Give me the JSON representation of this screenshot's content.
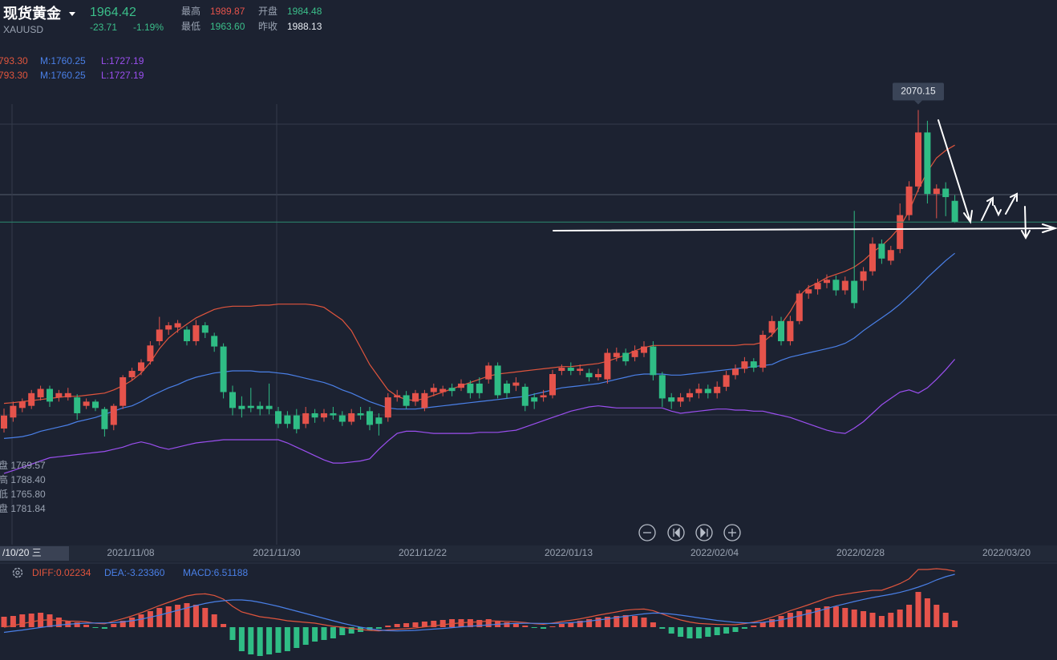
{
  "header": {
    "name": "现货黄金",
    "symbol": "XAUUSD",
    "price": "1964.42",
    "change": "-23.71",
    "change_pct": "-1.19%",
    "high_label": "最高",
    "high": "1989.87",
    "open_label": "开盘",
    "open": "1984.48",
    "low_label": "最低",
    "low": "1963.60",
    "prev_label": "昨收",
    "prev": "1988.13"
  },
  "band_legend": [
    {
      "upper": "793.30",
      "mid": "M:1760.25",
      "lower": "L:1727.19"
    },
    {
      "upper": "793.30",
      "mid": "M:1760.25",
      "lower": "L:1727.19"
    }
  ],
  "crosshair_info": [
    "盘 1769.57",
    "高 1788.40",
    "低 1765.80",
    "盘 1781.84"
  ],
  "crosshair_date": "/10/20 三",
  "chart_data": [
    {
      "type": "candlestick",
      "x_labels": [
        "2021/11/08",
        "2021/11/30",
        "2021/12/22",
        "2022/01/13",
        "2022/02/04",
        "2022/02/28",
        "2022/03/20"
      ],
      "up_color": "#e5534b",
      "down_color": "#2fbd85",
      "open": [
        1769.57,
        1780,
        1789,
        1791,
        1799,
        1807,
        1799,
        1799,
        1799,
        1791,
        1795,
        1788,
        1773,
        1791,
        1818,
        1824,
        1833,
        1852,
        1863,
        1865,
        1863,
        1852,
        1867,
        1857,
        1847,
        1804,
        1791,
        1791,
        1791,
        1791,
        1786,
        1782,
        1782,
        1774,
        1784,
        1780,
        1784,
        1782,
        1776,
        1784,
        1786,
        1780,
        1780,
        1799,
        1801,
        1795,
        1789,
        1804,
        1804,
        1808,
        1808,
        1812,
        1812,
        1816,
        1829,
        1812,
        1810,
        1809,
        1799,
        1799,
        1801,
        1824,
        1827,
        1824,
        1822,
        1818,
        1816,
        1837,
        1841,
        1837,
        1841,
        1847,
        1820,
        1799,
        1795,
        1799,
        1803,
        1807,
        1803,
        1809,
        1820,
        1826,
        1833,
        1827,
        1860,
        1871,
        1852,
        1871,
        1897,
        1901,
        1907,
        1910,
        1900,
        1909,
        1909,
        1918,
        1944,
        1928,
        1939,
        1971,
        1998,
        2049,
        1991,
        1996,
        1984.48
      ],
      "high": [
        1788.4,
        1795,
        1798,
        1806,
        1810,
        1810,
        1806,
        1808,
        1802,
        1798,
        1797,
        1790,
        1793,
        1820,
        1827,
        1835,
        1852,
        1875,
        1870,
        1872,
        1866,
        1872,
        1870,
        1860,
        1850,
        1810,
        1800,
        1808,
        1795,
        1812,
        1790,
        1786,
        1788,
        1790,
        1788,
        1788,
        1790,
        1786,
        1788,
        1790,
        1790,
        1784,
        1803,
        1806,
        1805,
        1806,
        1806,
        1812,
        1810,
        1812,
        1816,
        1815,
        1818,
        1832,
        1832,
        1815,
        1818,
        1812,
        1803,
        1806,
        1825,
        1830,
        1832,
        1830,
        1826,
        1826,
        1845,
        1846,
        1845,
        1848,
        1852,
        1852,
        1823,
        1803,
        1803,
        1807,
        1812,
        1811,
        1814,
        1824,
        1830,
        1837,
        1836,
        1862,
        1876,
        1875,
        1876,
        1900,
        1905,
        1911,
        1915,
        1914,
        1913,
        1975,
        1922,
        1950,
        1948,
        1942,
        1982,
        2003,
        2070.15,
        2060,
        2000,
        2002,
        1989.87
      ],
      "low": [
        1765.8,
        1776,
        1785,
        1788,
        1796,
        1790,
        1795,
        1796,
        1778,
        1788,
        1786,
        1762,
        1768,
        1788,
        1815,
        1820,
        1830,
        1848,
        1858,
        1860,
        1848,
        1848,
        1855,
        1842,
        1798,
        1782,
        1780,
        1785,
        1782,
        1783,
        1770,
        1770,
        1765,
        1770,
        1775,
        1776,
        1778,
        1772,
        1773,
        1778,
        1768,
        1763,
        1776,
        1795,
        1788,
        1791,
        1786,
        1800,
        1800,
        1800,
        1805,
        1798,
        1798,
        1812,
        1798,
        1798,
        1805,
        1786,
        1788,
        1795,
        1798,
        1820,
        1820,
        1820,
        1814,
        1815,
        1812,
        1833,
        1829,
        1833,
        1837,
        1815,
        1790,
        1788,
        1790,
        1795,
        1798,
        1798,
        1798,
        1805,
        1816,
        1822,
        1823,
        1823,
        1856,
        1848,
        1848,
        1868,
        1892,
        1896,
        1902,
        1895,
        1896,
        1883,
        1900,
        1914,
        1925,
        1924,
        1935,
        1966,
        1993,
        1982,
        1968,
        1970,
        1963.6
      ],
      "close": [
        1781.84,
        1791,
        1795,
        1803,
        1807,
        1795,
        1803,
        1803,
        1784,
        1795,
        1789,
        1769,
        1791,
        1818,
        1824,
        1832,
        1848,
        1863,
        1867,
        1869,
        1852,
        1867,
        1860,
        1847,
        1804,
        1789,
        1788,
        1789,
        1788,
        1788,
        1774,
        1774,
        1769,
        1784,
        1780,
        1784,
        1782,
        1776,
        1784,
        1782,
        1773,
        1774,
        1799,
        1801,
        1791,
        1803,
        1803,
        1808,
        1807,
        1805,
        1812,
        1803,
        1803,
        1829,
        1801,
        1803,
        1813,
        1791,
        1795,
        1801,
        1821,
        1827,
        1824,
        1826,
        1818,
        1821,
        1841,
        1841,
        1833,
        1843,
        1847,
        1820,
        1798,
        1795,
        1799,
        1803,
        1807,
        1803,
        1809,
        1820,
        1826,
        1833,
        1827,
        1858,
        1871,
        1852,
        1871,
        1897,
        1901,
        1907,
        1910,
        1900,
        1909,
        1888,
        1918,
        1944,
        1930,
        1938,
        1971,
        1998,
        2049,
        1991,
        1996,
        1988,
        1964.42
      ],
      "lines": [
        {
          "color": "#e0553d",
          "values": [
            1793.3,
            1794,
            1795,
            1796,
            1797,
            1798,
            1799,
            1800,
            1800,
            1801,
            1802,
            1803,
            1806,
            1810,
            1815,
            1822,
            1832,
            1845,
            1855,
            1862,
            1868,
            1874,
            1878,
            1882,
            1884,
            1885,
            1885,
            1885,
            1886,
            1886,
            1887,
            1887,
            1887,
            1887,
            1886,
            1884,
            1878,
            1872,
            1862,
            1846,
            1830,
            1818,
            1806,
            1800,
            1797,
            1796,
            1798,
            1801,
            1804,
            1807,
            1810,
            1813,
            1816,
            1819,
            1821,
            1822,
            1823,
            1824,
            1825,
            1826,
            1827,
            1828,
            1828,
            1829,
            1830,
            1831,
            1833,
            1836,
            1839,
            1843,
            1846,
            1848,
            1848,
            1848,
            1848,
            1848,
            1848,
            1848,
            1848,
            1848,
            1848,
            1849,
            1849,
            1851,
            1858,
            1868,
            1880,
            1895,
            1903,
            1907,
            1912,
            1915,
            1918,
            1922,
            1928,
            1936,
            1942,
            1950,
            1960,
            1975,
            1995,
            2012,
            2025,
            2032,
            2037
          ]
        },
        {
          "color": "#4a80e8",
          "values": [
            1760.25,
            1761,
            1762,
            1764,
            1767,
            1769,
            1771,
            1773,
            1776,
            1778,
            1780,
            1783,
            1786,
            1789,
            1791,
            1795,
            1800,
            1804,
            1808,
            1811,
            1815,
            1818,
            1820,
            1822,
            1823,
            1824,
            1824,
            1824,
            1823,
            1823,
            1822,
            1821,
            1819,
            1817,
            1815,
            1813,
            1810,
            1806,
            1803,
            1799,
            1795,
            1792,
            1789,
            1788,
            1788,
            1788,
            1789,
            1790,
            1791,
            1792,
            1793,
            1794,
            1795,
            1796,
            1797,
            1798,
            1799,
            1800,
            1802,
            1804,
            1806,
            1808,
            1809,
            1810,
            1811,
            1812,
            1814,
            1816,
            1818,
            1820,
            1821,
            1821,
            1821,
            1820,
            1820,
            1821,
            1822,
            1823,
            1824,
            1825,
            1826,
            1827,
            1828,
            1829,
            1830,
            1834,
            1837,
            1839,
            1841,
            1843,
            1845,
            1847,
            1850,
            1855,
            1862,
            1868,
            1874,
            1880,
            1887,
            1895,
            1903,
            1912,
            1920,
            1928,
            1935
          ]
        },
        {
          "color": "#9b4ff0",
          "values": [
            1727.19,
            1730,
            1733,
            1736,
            1739,
            1742,
            1743,
            1744,
            1745,
            1746,
            1747,
            1748,
            1750,
            1752,
            1755,
            1757,
            1755,
            1752,
            1750,
            1752,
            1754,
            1756,
            1757,
            1758,
            1759,
            1759,
            1759,
            1759,
            1759,
            1759,
            1759,
            1756,
            1752,
            1748,
            1744,
            1740,
            1737,
            1737,
            1738,
            1739,
            1741,
            1750,
            1758,
            1765,
            1767,
            1767,
            1766,
            1765,
            1765,
            1765,
            1765,
            1765,
            1766,
            1766,
            1766,
            1767,
            1768,
            1771,
            1774,
            1777,
            1780,
            1783,
            1786,
            1788,
            1790,
            1791,
            1790,
            1789,
            1789,
            1789,
            1789,
            1789,
            1789,
            1786,
            1784,
            1785,
            1786,
            1787,
            1788,
            1788,
            1787,
            1787,
            1786,
            1786,
            1784,
            1782,
            1780,
            1777,
            1774,
            1771,
            1768,
            1766,
            1765,
            1770,
            1776,
            1784,
            1792,
            1798,
            1804,
            1806,
            1803,
            1808,
            1816,
            1825,
            1835
          ]
        }
      ],
      "price_line_color": "#2b8a70",
      "annotation": "2070.15",
      "ylim": [
        1660,
        2174
      ]
    },
    {
      "type": "macd",
      "legend": [
        "DIFF:0.02234",
        "DEA:-3.23360",
        "MACD:6.51188"
      ],
      "legend_colors": [
        "#e0553d",
        "#4a80e8",
        "#4a80e8"
      ],
      "up_color": "#e5534b",
      "down_color": "#2fbd85",
      "histogram": [
        6.51188,
        7,
        8,
        8.5,
        9,
        8,
        6,
        4,
        3,
        1.5,
        -0.5,
        -1,
        2,
        4,
        6,
        8,
        10,
        12,
        13,
        14,
        15,
        14,
        12,
        8,
        2,
        -8,
        -15,
        -17,
        -18,
        -17,
        -16,
        -15,
        -13,
        -11,
        -9,
        -8,
        -7,
        -5,
        -4,
        -3,
        -2,
        -1,
        1,
        2,
        2.5,
        3,
        3.5,
        4,
        4.5,
        5,
        5,
        5,
        4.5,
        5,
        4,
        3,
        2,
        1,
        -0.5,
        -1,
        0.5,
        2,
        3,
        4,
        5,
        6,
        6.5,
        7,
        7.5,
        7,
        6,
        3,
        -1,
        -4,
        -6,
        -7,
        -7,
        -6,
        -5,
        -4,
        -3,
        -1,
        1,
        3,
        5,
        7,
        9,
        10,
        11,
        12,
        13,
        13,
        12,
        11,
        10,
        9,
        7,
        9,
        11,
        14,
        22,
        18,
        14,
        9,
        4
      ],
      "series": [
        {
          "color": "#e0553d",
          "values": [
            0.02234,
            1,
            2.2,
            3.3,
            4.3,
            4.6,
            4.3,
            3.8,
            3.7,
            3.3,
            2.4,
            2.1,
            3.8,
            5.3,
            7,
            9,
            11.2,
            13.5,
            15.5,
            17.5,
            19.5,
            20.5,
            20.8,
            19.8,
            17.5,
            13,
            9.5,
            8,
            6.5,
            5.8,
            5,
            4,
            3.5,
            3,
            2.5,
            1.5,
            0.5,
            0,
            -0.8,
            -1.5,
            -2,
            -2.3,
            -1.7,
            -1.3,
            -1,
            -0.5,
            0.2,
            0.8,
            1.5,
            2.2,
            2.7,
            3.1,
            3.3,
            3.9,
            3.8,
            3.6,
            3.3,
            2.9,
            2.2,
            1.8,
            2.6,
            3.5,
            4.3,
            5.2,
            6.3,
            7.5,
            8.5,
            9.5,
            10.6,
            11.1,
            11.3,
            10.3,
            8.2,
            6.2,
            4.5,
            3.2,
            2.3,
            2,
            1.7,
            1.6,
            1.5,
            2.2,
            3.2,
            4.5,
            6.2,
            8.1,
            10.3,
            12.1,
            14,
            16,
            18.1,
            19.7,
            20.6,
            21.5,
            22.3,
            23,
            23,
            25,
            27.2,
            30.2,
            36,
            36,
            36.5,
            36,
            35
          ]
        },
        {
          "color": "#4a80e8",
          "values": [
            -3.2336,
            -2.5,
            -1.8,
            -1,
            -0.2,
            0.6,
            1.3,
            1.8,
            2.2,
            2.5,
            2.6,
            2.6,
            2.8,
            3.3,
            4,
            5,
            6.2,
            7.5,
            9,
            10.5,
            12,
            13.5,
            14.8,
            15.8,
            16.5,
            17,
            17,
            16.5,
            15.5,
            14.3,
            13,
            11.5,
            10,
            8.5,
            7,
            5.5,
            4,
            2.5,
            1.2,
            0,
            -1,
            -1.8,
            -2.2,
            -2.3,
            -2.2,
            -2,
            -1.6,
            -1.2,
            -0.8,
            -0.3,
            0.2,
            0.6,
            1,
            1.4,
            1.8,
            2.1,
            2.3,
            2.4,
            2.4,
            2.3,
            2.3,
            2.5,
            2.8,
            3.2,
            3.8,
            4.5,
            5.2,
            6,
            6.8,
            7.6,
            8.3,
            8.8,
            8.7,
            8.2,
            7.5,
            6.7,
            5.8,
            5,
            4.2,
            3.6,
            3,
            2.7,
            2.7,
            3,
            3.7,
            4.6,
            5.8,
            7.1,
            8.5,
            10,
            11.6,
            13.2,
            14.6,
            16,
            17.3,
            18.5,
            19.5,
            20.5,
            21.7,
            23.2,
            25,
            27,
            29.5,
            31.5,
            33
          ]
        }
      ],
      "ylim": [
        -20,
        39
      ]
    }
  ]
}
